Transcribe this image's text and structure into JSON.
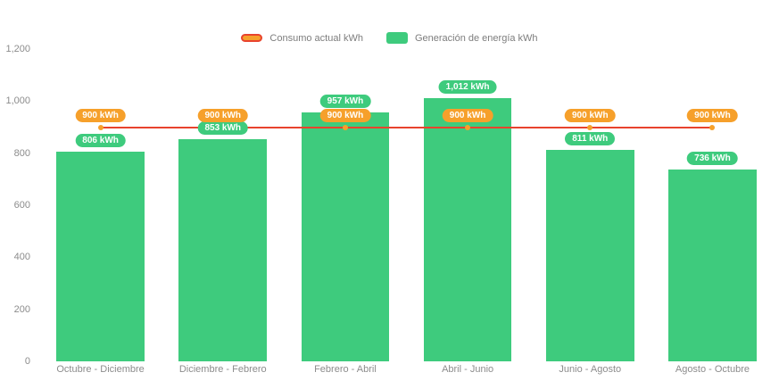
{
  "chart_data": {
    "type": "bar",
    "title": "",
    "categories": [
      "Octubre - Diciembre",
      "Diciembre - Febrero",
      "Febrero - Abril",
      "Abril - Junio",
      "Junio - Agosto",
      "Agosto - Octubre"
    ],
    "series": [
      {
        "name": "Consumo actual kWh",
        "render": "line",
        "values": [
          900,
          900,
          900,
          900,
          900,
          900
        ],
        "labels": [
          "900 kWh",
          "900 kWh",
          "900 kWh",
          "900 kWh",
          "900 kWh",
          "900 kWh"
        ],
        "color": "#e8432d",
        "marker_color": "#f6a02b"
      },
      {
        "name": "Generación de energía kWh",
        "render": "bar",
        "values": [
          806,
          853,
          957,
          1012,
          811,
          736
        ],
        "labels": [
          "806 kWh",
          "853 kWh",
          "957 kWh",
          "1,012 kWh",
          "811 kWh",
          "736 kWh"
        ],
        "color": "#3ecb7d"
      }
    ],
    "xlabel": "",
    "ylabel": "",
    "ylim": [
      0,
      1200
    ],
    "yticks_text": [
      "1,200",
      "1,000",
      "800",
      "600",
      "400",
      "200",
      "0"
    ],
    "yticks_values": [
      1200,
      1000,
      800,
      600,
      400,
      200,
      0
    ],
    "legend_position": "top",
    "grid": false
  },
  "legend": {
    "consumption_label": "Consumo actual kWh",
    "generation_label": "Generación de energía kWh"
  },
  "colors": {
    "bar_green": "#3ecb7d",
    "badge_orange": "#f6a02b",
    "line_red": "#e8432d",
    "axis_text": "#8c8c8c"
  }
}
